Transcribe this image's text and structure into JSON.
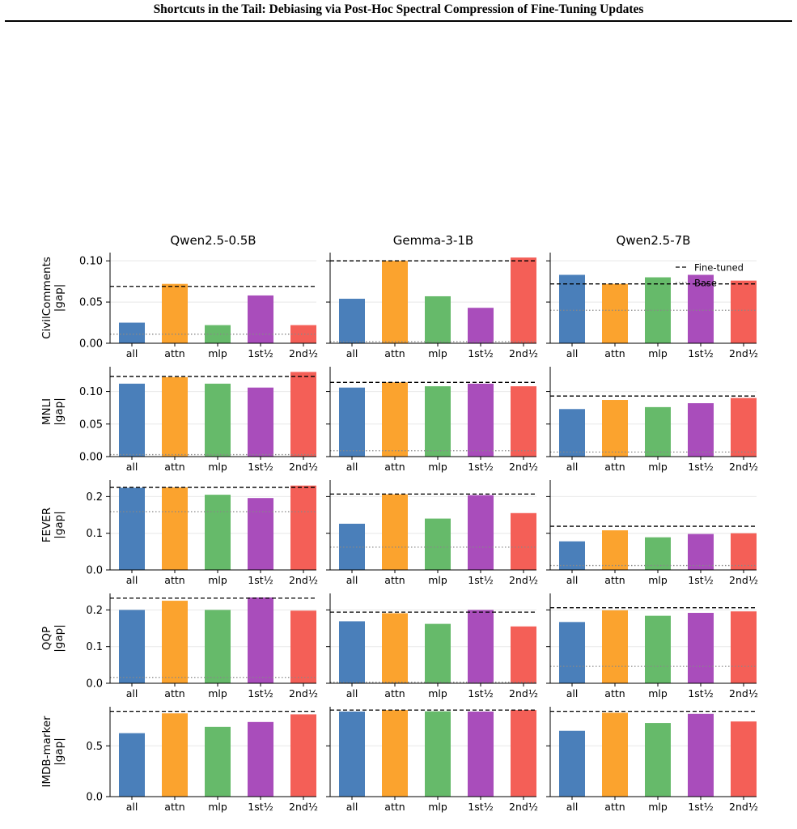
{
  "header": {
    "title": "Shortcuts in the Tail: Debiasing via Post-Hoc Spectral Compression of Fine-Tuning Updates"
  },
  "colors": {
    "all": "#4A7FBA",
    "attn": "#FBA32E",
    "mlp": "#66BA6A",
    "first_half": "#A94DBB",
    "second_half": "#F45F57",
    "finetuned_line": "#000000",
    "base_line": "#888888"
  },
  "chart_data": {
    "type": "bar",
    "categories": [
      "all",
      "attn",
      "mlp",
      "1st½",
      "2nd½"
    ],
    "models": [
      "Qwen2.5-0.5B",
      "Gemma-3-1B",
      "Qwen2.5-7B"
    ],
    "legend": {
      "fine_tuned": "Fine-tuned",
      "base": "Base",
      "position": "top-right of Qwen2.5-7B CivilComments panel"
    },
    "rows": [
      {
        "dataset": "CivilComments",
        "ylabel_line1": "CivilComments",
        "ylabel_line2": "|gap|",
        "ylim": [
          0,
          0.11
        ],
        "yticks": [
          0,
          0.05,
          0.1
        ],
        "yticklabels": [
          "0.00",
          "0.05",
          "0.10"
        ],
        "panels": [
          {
            "values": [
              0.025,
              0.072,
              0.022,
              0.058,
              0.022
            ],
            "fine_tuned": 0.069,
            "base": 0.011
          },
          {
            "values": [
              0.054,
              0.1,
              0.057,
              0.043,
              0.104
            ],
            "fine_tuned": 0.1,
            "base": 0.002
          },
          {
            "values": [
              0.083,
              0.072,
              0.08,
              0.083,
              0.076
            ],
            "fine_tuned": 0.072,
            "base": 0.04
          }
        ]
      },
      {
        "dataset": "MNLI",
        "ylabel_line1": "MNLI",
        "ylabel_line2": "|gap|",
        "ylim": [
          0,
          0.138
        ],
        "yticks": [
          0,
          0.05,
          0.1
        ],
        "yticklabels": [
          "0.00",
          "0.05",
          "0.10"
        ],
        "panels": [
          {
            "values": [
              0.112,
              0.122,
              0.112,
              0.106,
              0.13
            ],
            "fine_tuned": 0.123,
            "base": 0.003
          },
          {
            "values": [
              0.106,
              0.114,
              0.108,
              0.112,
              0.108
            ],
            "fine_tuned": 0.114,
            "base": 0.009
          },
          {
            "values": [
              0.073,
              0.087,
              0.076,
              0.082,
              0.09
            ],
            "fine_tuned": 0.093,
            "base": 0.007
          }
        ]
      },
      {
        "dataset": "FEVER",
        "ylabel_line1": "FEVER",
        "ylabel_line2": "|gap|",
        "ylim": [
          0,
          0.245
        ],
        "yticks": [
          0,
          0.1,
          0.2
        ],
        "yticklabels": [
          "0.0",
          "0.1",
          "0.2"
        ],
        "panels": [
          {
            "values": [
              0.224,
              0.225,
              0.205,
              0.196,
              0.23
            ],
            "fine_tuned": 0.225,
            "base": 0.159
          },
          {
            "values": [
              0.126,
              0.206,
              0.14,
              0.204,
              0.155
            ],
            "fine_tuned": 0.207,
            "base": 0.062
          },
          {
            "values": [
              0.078,
              0.108,
              0.089,
              0.098,
              0.1
            ],
            "fine_tuned": 0.119,
            "base": 0.012
          }
        ]
      },
      {
        "dataset": "QQP",
        "ylabel_line1": "QQP",
        "ylabel_line2": "|gap|",
        "ylim": [
          0,
          0.245
        ],
        "yticks": [
          0,
          0.1,
          0.2
        ],
        "yticklabels": [
          "0.0",
          "0.1",
          "0.2"
        ],
        "panels": [
          {
            "values": [
              0.2,
              0.225,
              0.2,
              0.234,
              0.198
            ],
            "fine_tuned": 0.232,
            "base": 0.016
          },
          {
            "values": [
              0.169,
              0.191,
              0.162,
              0.2,
              0.155
            ],
            "fine_tuned": 0.194,
            "base": 0.003
          },
          {
            "values": [
              0.167,
              0.199,
              0.184,
              0.192,
              0.196
            ],
            "fine_tuned": 0.206,
            "base": 0.046
          }
        ]
      },
      {
        "dataset": "IMDB-marker",
        "ylabel_line1": "IMDB-marker",
        "ylabel_line2": "|gap|",
        "ylim": [
          0,
          0.885
        ],
        "yticks": [
          0,
          0.5
        ],
        "yticklabels": [
          "0.0",
          "0.5"
        ],
        "panels": [
          {
            "values": [
              0.625,
              0.82,
              0.687,
              0.735,
              0.81
            ],
            "fine_tuned": 0.84,
            "base": null
          },
          {
            "values": [
              0.838,
              0.852,
              0.84,
              0.838,
              0.852
            ],
            "fine_tuned": 0.852,
            "base": null
          },
          {
            "values": [
              0.648,
              0.826,
              0.725,
              0.815,
              0.74
            ],
            "fine_tuned": 0.84,
            "base": null
          }
        ]
      }
    ]
  }
}
